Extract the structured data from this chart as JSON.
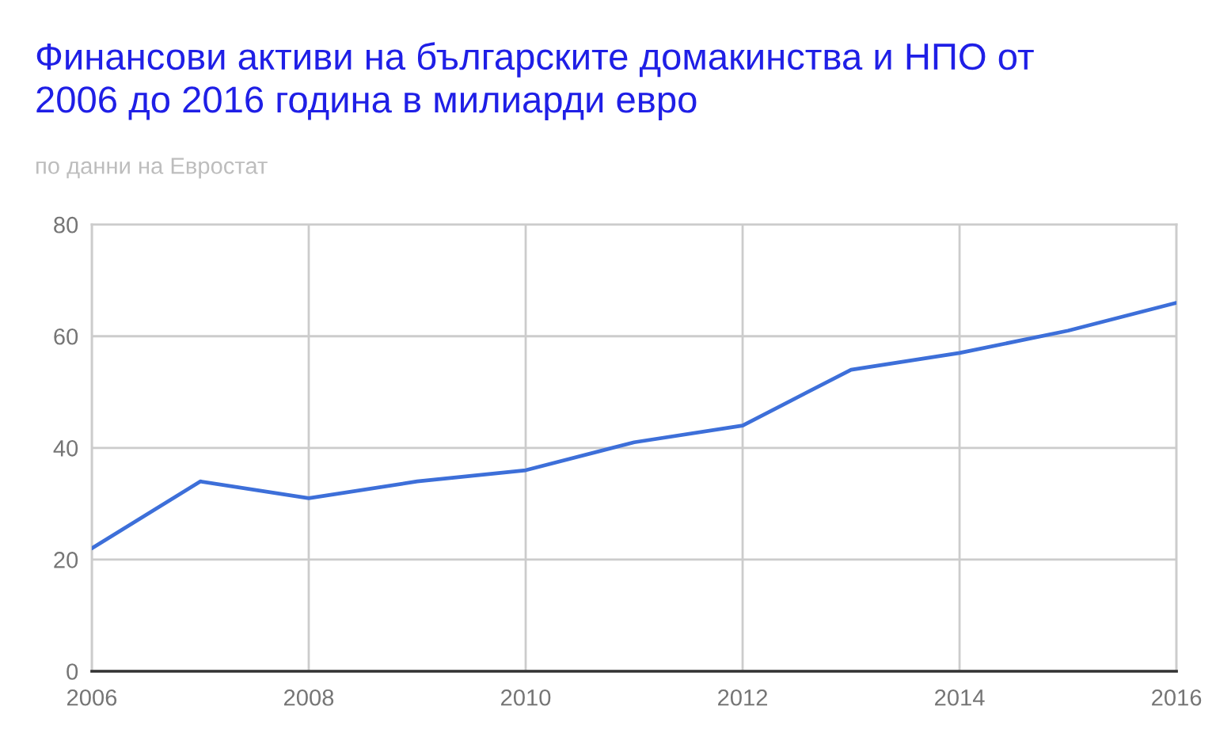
{
  "chart_data": {
    "type": "line",
    "title": "Финансови активи на българските домакинства и НПО от 2006 до 2016 година в милиарди евро",
    "subtitle": "по данни на Евростат",
    "x": [
      2006,
      2007,
      2008,
      2009,
      2010,
      2011,
      2012,
      2013,
      2014,
      2015,
      2016
    ],
    "series": [
      {
        "color": "#3d6fd9",
        "values": [
          22,
          34,
          31,
          34,
          36,
          41,
          44,
          54,
          57,
          61,
          66
        ]
      }
    ],
    "xlim": [
      2006,
      2016
    ],
    "xticks": [
      2006,
      2008,
      2010,
      2012,
      2014,
      2016
    ],
    "ylim": [
      0,
      80
    ],
    "yticks": [
      0,
      20,
      40,
      60,
      80
    ],
    "grid": true
  }
}
